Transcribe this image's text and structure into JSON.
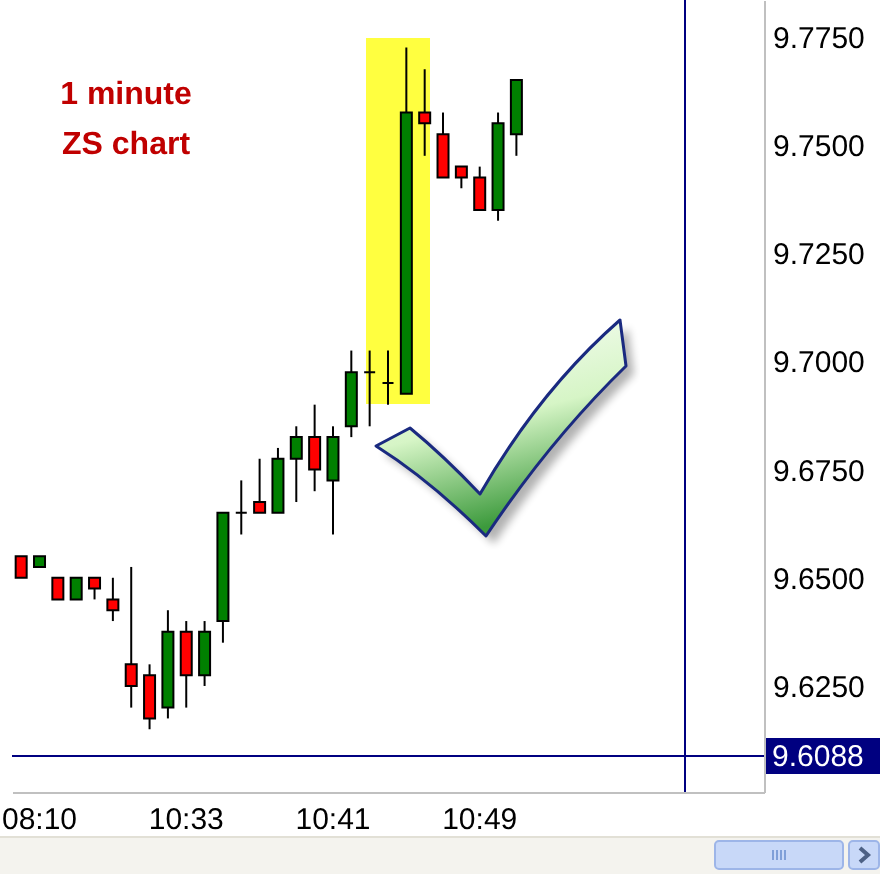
{
  "chart_data": {
    "type": "candlestick",
    "title": "1 minute\nZS chart",
    "categories": [
      null,
      "08:10",
      null,
      null,
      null,
      null,
      null,
      null,
      null,
      "10:33",
      null,
      null,
      null,
      null,
      null,
      null,
      null,
      "10:41",
      null,
      null,
      null,
      null,
      null,
      null,
      null,
      "10:49",
      null,
      null,
      null,
      null,
      null,
      null,
      null,
      null,
      null,
      null,
      null,
      null,
      null,
      null,
      null
    ],
    "ohlc": [
      [
        9.655,
        9.655,
        9.65,
        9.65
      ],
      [
        9.6525,
        9.655,
        9.6525,
        9.655
      ],
      [
        9.65,
        9.65,
        9.645,
        9.645
      ],
      [
        9.645,
        9.65,
        9.645,
        9.65
      ],
      [
        9.65,
        9.65,
        9.645,
        9.6475
      ],
      [
        9.645,
        9.65,
        9.64,
        9.6425
      ],
      [
        9.63,
        9.6525,
        9.62,
        9.625
      ],
      [
        9.6275,
        9.63,
        9.615,
        9.6175
      ],
      [
        9.62,
        9.6425,
        9.6175,
        9.6375
      ],
      [
        9.6375,
        9.64,
        9.62,
        9.6275
      ],
      [
        9.6275,
        9.64,
        9.625,
        9.6375
      ],
      [
        9.64,
        9.665,
        9.635,
        9.665
      ],
      [
        9.665,
        9.6725,
        9.66,
        9.665
      ],
      [
        9.6675,
        9.6775,
        9.665,
        9.665
      ],
      [
        9.665,
        9.68,
        9.665,
        9.6775
      ],
      [
        9.6775,
        9.685,
        9.6675,
        9.6825
      ],
      [
        9.6825,
        9.69,
        9.67,
        9.675
      ],
      [
        9.6725,
        9.685,
        9.66,
        9.6825
      ],
      [
        9.685,
        9.7025,
        9.6825,
        9.6975
      ],
      [
        9.6975,
        9.7025,
        9.685,
        9.6975
      ],
      [
        9.695,
        9.7025,
        9.69,
        9.695
      ],
      [
        9.6925,
        9.7725,
        9.6925,
        9.7575
      ],
      [
        9.7575,
        9.7675,
        9.7475,
        9.755
      ],
      [
        9.7525,
        9.7575,
        9.7425,
        9.7425
      ],
      [
        9.745,
        9.745,
        9.74,
        9.7425
      ],
      [
        9.7425,
        9.745,
        9.735,
        9.735
      ],
      [
        9.735,
        9.7575,
        9.7325,
        9.755
      ],
      [
        9.7525,
        9.765,
        9.7475,
        9.765
      ],
      null,
      null,
      null,
      null,
      null,
      null,
      null,
      null,
      null,
      null,
      null,
      null,
      null
    ],
    "colors": [
      "#ff0000",
      "#008000",
      "#ff0000",
      "#008000",
      "#ff0000",
      "#ff0000",
      "#ff0000",
      "#ff0000",
      "#008000",
      "#ff0000",
      "#008000",
      "#008000",
      "#000000",
      "#ff0000",
      "#008000",
      "#008000",
      "#ff0000",
      "#008000",
      "#008000",
      "#000000",
      "#000000",
      "#008000",
      "#ff0000",
      "#ff0000",
      "#ff0000",
      "#ff0000",
      "#008000",
      "#008000",
      null,
      null,
      null,
      null,
      null,
      null,
      null,
      null,
      null,
      null,
      null,
      null,
      null
    ],
    "ylim": [
      9.6005,
      9.7835
    ],
    "yticks": [
      {
        "value": 9.625,
        "label": "9.6250"
      },
      {
        "value": 9.65,
        "label": "9.6500"
      },
      {
        "value": 9.675,
        "label": "9.6750"
      },
      {
        "value": 9.7,
        "label": "9.7000"
      },
      {
        "value": 9.725,
        "label": "9.7250"
      },
      {
        "value": 9.75,
        "label": "9.7500"
      },
      {
        "value": 9.775,
        "label": "9.7750"
      }
    ],
    "ref_lines": [
      {
        "axis": "y",
        "value": 9.6088,
        "label": "9.6088",
        "color": "#000080"
      }
    ]
  }
}
